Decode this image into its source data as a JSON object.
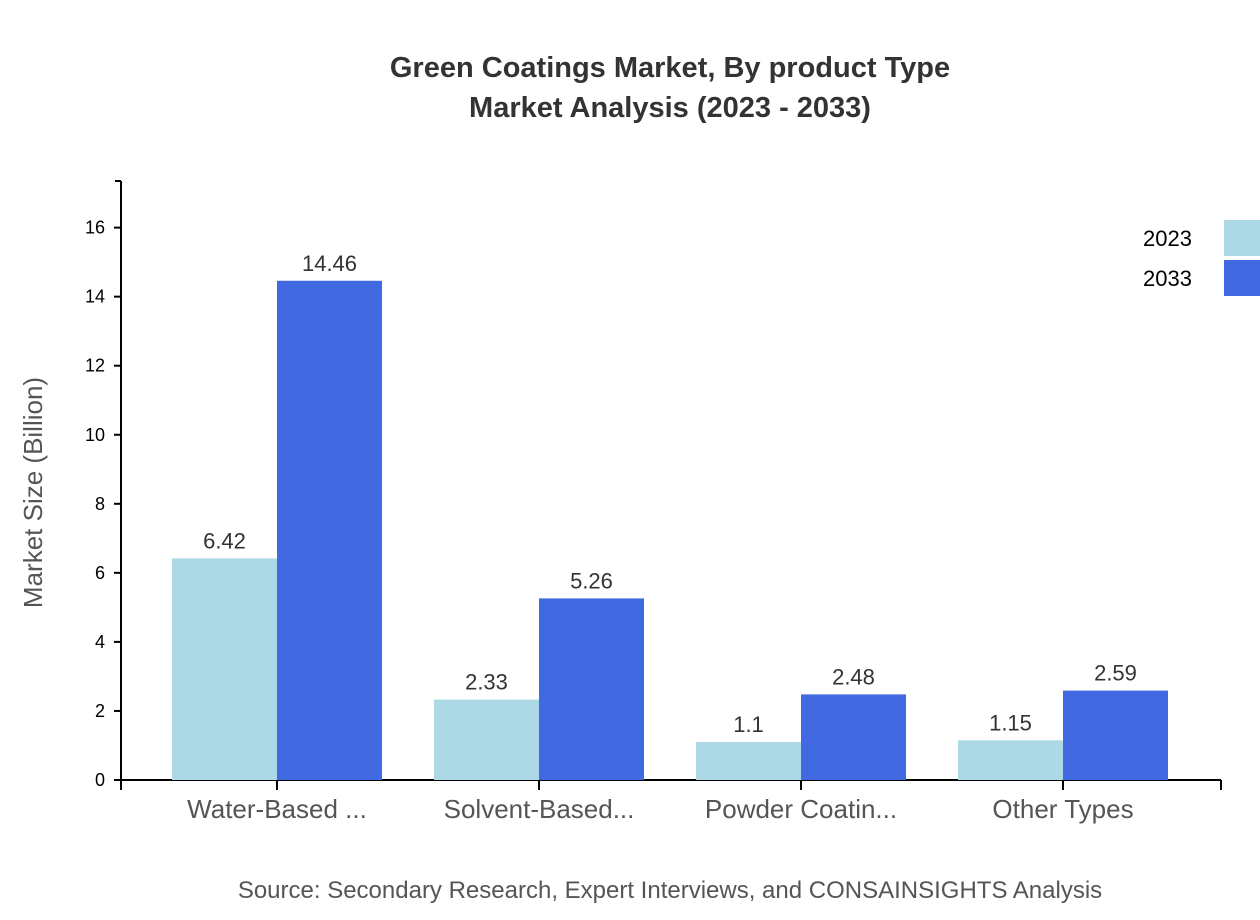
{
  "chart_data": {
    "type": "bar",
    "title": "Green Coatings Market, By product Type",
    "subtitle": "Market Analysis (2023 - 2033)",
    "xlabel": "",
    "ylabel": "Market Size (Billion)",
    "categories": [
      "Water-Based ...",
      "Solvent-Based...",
      "Powder Coatin...",
      "Other Types"
    ],
    "series": [
      {
        "name": "2023",
        "color": "#ADD8E6",
        "values": [
          6.42,
          2.33,
          1.1,
          1.15
        ]
      },
      {
        "name": "2033",
        "color": "#4169E1",
        "values": [
          14.46,
          5.26,
          2.48,
          2.59
        ]
      }
    ],
    "ylim": [
      0,
      17.35
    ],
    "yticks": [
      0,
      2,
      4,
      6,
      8,
      10,
      12,
      14,
      16
    ],
    "grid": false,
    "legend": "top-right"
  },
  "source": "Source: Secondary Research, Expert Interviews, and CONSAINSIGHTS Analysis"
}
